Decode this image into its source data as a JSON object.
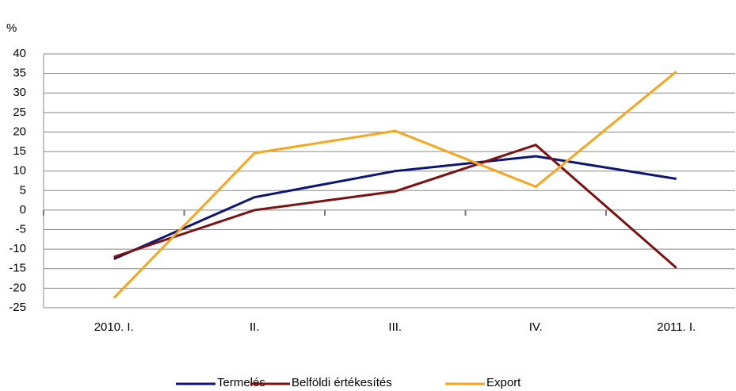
{
  "chart_data": {
    "type": "line",
    "y_label": "%",
    "categories": [
      "2010. I.",
      "II.",
      "III.",
      "IV.",
      "2011. I."
    ],
    "series": [
      {
        "name": "Termelés",
        "color": "#0c1677",
        "values": [
          -12.5,
          3.3,
          10,
          13.8,
          8
        ]
      },
      {
        "name": "Belföldi értékesítés",
        "color": "#7d1010",
        "values": [
          -12,
          0,
          4.8,
          16.7,
          -14.8
        ]
      },
      {
        "name": "Export",
        "color": "#f8a51c",
        "values": [
          -22.5,
          14.6,
          20.3,
          6,
          35.5
        ]
      }
    ],
    "ylim": [
      -25,
      40
    ],
    "yticks": [
      -25,
      -20,
      -15,
      -10,
      -5,
      0,
      5,
      10,
      15,
      20,
      25,
      30,
      35,
      40
    ],
    "grid": true,
    "legend": "bottom"
  }
}
